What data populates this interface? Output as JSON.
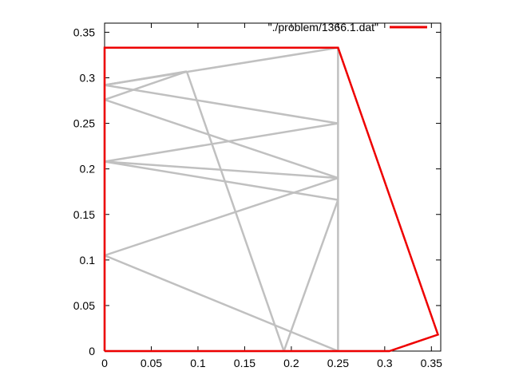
{
  "chart_data": {
    "type": "line",
    "title": "",
    "xlabel": "",
    "ylabel": "",
    "xlim": [
      0,
      0.36
    ],
    "ylim": [
      0,
      0.36
    ],
    "grid": false,
    "legend_placement": "top-right",
    "x_ticks": [
      "0",
      "0.05",
      "0.1",
      "0.15",
      "0.2",
      "0.25",
      "0.3",
      "0.35"
    ],
    "y_ticks": [
      "0",
      "0.05",
      "0.1",
      "0.15",
      "0.2",
      "0.25",
      "0.3",
      "0.35"
    ],
    "legend": [
      {
        "label": "\"./problem/1366.1.dat\"",
        "color": "#ee0000"
      }
    ],
    "series": [
      {
        "name": "\"./problem/1366.1.dat\"",
        "color": "#ee0000",
        "points": [
          [
            0,
            0
          ],
          [
            0.305,
            0
          ],
          [
            0.357,
            0.018
          ],
          [
            0.25,
            0.333
          ],
          [
            0,
            0.333
          ],
          [
            0,
            0
          ]
        ]
      }
    ],
    "segments": {
      "color": "#c0c0c0",
      "lines": [
        [
          [
            0,
            0.333
          ],
          [
            0.25,
            0.333
          ]
        ],
        [
          [
            0.25,
            0.333
          ],
          [
            0,
            0.292
          ]
        ],
        [
          [
            0,
            0.292
          ],
          [
            0.25,
            0.25
          ]
        ],
        [
          [
            0.25,
            0.25
          ],
          [
            0,
            0.208
          ]
        ],
        [
          [
            0,
            0.208
          ],
          [
            0.25,
            0.19
          ]
        ],
        [
          [
            0.25,
            0.19
          ],
          [
            0,
            0.276
          ]
        ],
        [
          [
            0,
            0.276
          ],
          [
            0.088,
            0.307
          ]
        ],
        [
          [
            0.088,
            0.307
          ],
          [
            0,
            0.292
          ]
        ],
        [
          [
            0,
            0.208
          ],
          [
            0.25,
            0.166
          ]
        ],
        [
          [
            0,
            0.105
          ],
          [
            0.25,
            0.19
          ]
        ],
        [
          [
            0,
            0.105
          ],
          [
            0.25,
            0
          ]
        ],
        [
          [
            0.088,
            0.307
          ],
          [
            0.192,
            0
          ]
        ],
        [
          [
            0.192,
            0
          ],
          [
            0.25,
            0.166
          ]
        ],
        [
          [
            0.25,
            0.333
          ],
          [
            0.25,
            0
          ]
        ],
        [
          [
            0,
            0
          ],
          [
            0,
            0.333
          ]
        ],
        [
          [
            0,
            0
          ],
          [
            0.305,
            0
          ]
        ]
      ]
    }
  }
}
